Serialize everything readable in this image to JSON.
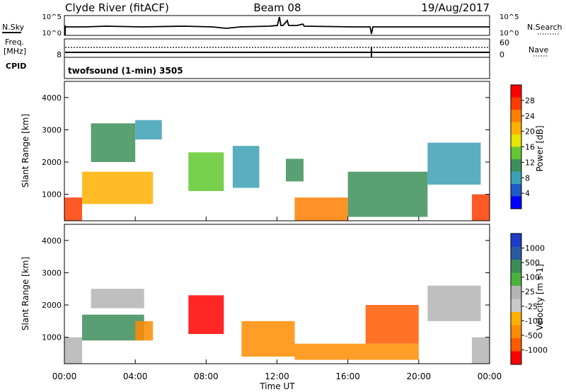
{
  "header": {
    "title_left": "Clyde River (fitACF)",
    "title_center": "Beam 08",
    "title_right": "19/Aug/2017"
  },
  "noise_panel": {
    "left_label": "N.Sky",
    "right_label": "N.Search",
    "y_ticks_left": [
      "10^5",
      "10^0"
    ],
    "y_ticks_right": [
      "10^5",
      "10^0"
    ]
  },
  "freq_panel": {
    "left_label_top": "Freq.",
    "left_label_unit": "[MHz]",
    "right_label": "Nave",
    "y_ticks_left": [
      "8"
    ],
    "y_ticks_right": [
      "60",
      "0"
    ]
  },
  "cpid_panel": {
    "left_label": "CPID",
    "text": "twofsound (1-min) 3505"
  },
  "x_axis": {
    "label": "Time UT",
    "ticks": [
      "00:00",
      "04:00",
      "08:00",
      "12:00",
      "16:00",
      "20:00",
      "00:00"
    ]
  },
  "power_colorbar": {
    "label": "Power [dB]",
    "ticks": [
      "28",
      "24",
      "20",
      "16",
      "12",
      "8",
      "4"
    ],
    "colors": [
      "#ff0000",
      "#ff3c00",
      "#ff7f00",
      "#ffb000",
      "#e5e500",
      "#62c830",
      "#3c8f5a",
      "#3ca0b4",
      "#1e5ac8",
      "#0000ff"
    ]
  },
  "velocity_colorbar": {
    "label": "Velocity [m s-1]",
    "ticks": [
      "1000",
      "500",
      "100",
      "25",
      "-25",
      "-100",
      "-500",
      "-1000"
    ],
    "colors": [
      "#1e3cc8",
      "#2a5aa0",
      "#3c8c5a",
      "#4cb03c",
      "#b4b4b4",
      "#c8c8c8",
      "#ffb000",
      "#ff8c00",
      "#ff5a00",
      "#ff0000"
    ]
  },
  "chart_data": [
    {
      "type": "heatmap",
      "title": "Power",
      "xlabel": "Time UT",
      "ylabel": "Slant Range [km]",
      "xlim": [
        "00:00",
        "24:00"
      ],
      "ylim": [
        180,
        4500
      ],
      "y_ticks": [
        1000,
        2000,
        3000,
        4000
      ],
      "colorbar": "Power [dB]",
      "regions": [
        {
          "t_start": 0.0,
          "t_end": 1.0,
          "r_min": 180,
          "r_max": 900,
          "value_db": 26
        },
        {
          "t_start": 1.0,
          "t_end": 5.0,
          "r_min": 700,
          "r_max": 1700,
          "value_db": 18
        },
        {
          "t_start": 1.5,
          "t_end": 4.0,
          "r_min": 2000,
          "r_max": 3200,
          "value_db": 10
        },
        {
          "t_start": 4.0,
          "t_end": 5.5,
          "r_min": 2700,
          "r_max": 3300,
          "value_db": 8
        },
        {
          "t_start": 7.0,
          "t_end": 9.0,
          "r_min": 1100,
          "r_max": 2300,
          "value_db": 14
        },
        {
          "t_start": 9.5,
          "t_end": 11.0,
          "r_min": 1200,
          "r_max": 2500,
          "value_db": 8
        },
        {
          "t_start": 12.5,
          "t_end": 13.5,
          "r_min": 1400,
          "r_max": 2100,
          "value_db": 10
        },
        {
          "t_start": 13.0,
          "t_end": 16.0,
          "r_min": 180,
          "r_max": 900,
          "value_db": 22
        },
        {
          "t_start": 16.0,
          "t_end": 20.5,
          "r_min": 300,
          "r_max": 1700,
          "value_db": 12
        },
        {
          "t_start": 20.5,
          "t_end": 23.5,
          "r_min": 1300,
          "r_max": 2600,
          "value_db": 8
        },
        {
          "t_start": 23.0,
          "t_end": 24.0,
          "r_min": 180,
          "r_max": 1000,
          "value_db": 24
        }
      ]
    },
    {
      "type": "heatmap",
      "title": "Velocity",
      "xlabel": "Time UT",
      "ylabel": "Slant Range [km]",
      "xlim": [
        "00:00",
        "24:00"
      ],
      "ylim": [
        180,
        4500
      ],
      "y_ticks": [
        1000,
        2000,
        3000,
        4000
      ],
      "colorbar": "Velocity [m s-1]",
      "regions": [
        {
          "t_start": 0.0,
          "t_end": 1.0,
          "r_min": 180,
          "r_max": 1000,
          "value_ms": 0
        },
        {
          "t_start": 1.0,
          "t_end": 4.5,
          "r_min": 900,
          "r_max": 1700,
          "value_ms": 300
        },
        {
          "t_start": 4.0,
          "t_end": 5.0,
          "r_min": 900,
          "r_max": 1500,
          "value_ms": -300
        },
        {
          "t_start": 1.5,
          "t_end": 4.5,
          "r_min": 1900,
          "r_max": 2500,
          "value_ms": 0
        },
        {
          "t_start": 7.0,
          "t_end": 9.0,
          "r_min": 1100,
          "r_max": 2300,
          "value_ms": -600
        },
        {
          "t_start": 10.0,
          "t_end": 13.0,
          "r_min": 400,
          "r_max": 1500,
          "value_ms": -300
        },
        {
          "t_start": 13.0,
          "t_end": 20.0,
          "r_min": 300,
          "r_max": 800,
          "value_ms": -200
        },
        {
          "t_start": 17.0,
          "t_end": 20.0,
          "r_min": 800,
          "r_max": 2000,
          "value_ms": -500
        },
        {
          "t_start": 20.5,
          "t_end": 23.5,
          "r_min": 1500,
          "r_max": 2600,
          "value_ms": 0
        },
        {
          "t_start": 23.0,
          "t_end": 24.0,
          "r_min": 180,
          "r_max": 1000,
          "value_ms": 0
        }
      ]
    }
  ]
}
